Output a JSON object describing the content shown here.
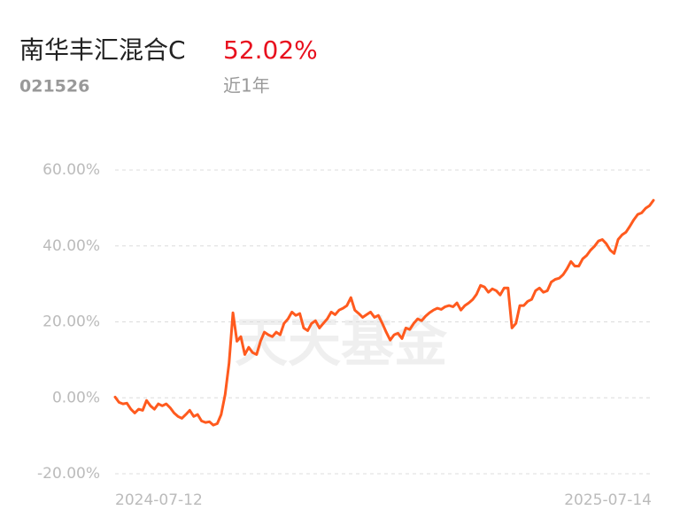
{
  "chart_data": {
    "type": "line",
    "title": "南华丰汇混合C",
    "return_label": "52.02%",
    "code": "021526",
    "period": "近1年",
    "watermark": "天天基金",
    "categories": [
      "2024-07-12",
      null,
      null,
      null,
      null,
      null,
      null,
      null,
      null,
      null,
      null,
      null,
      null,
      null,
      null,
      null,
      null,
      null,
      null,
      null,
      null,
      null,
      null,
      null,
      null,
      null,
      null,
      null,
      null,
      null,
      null,
      null,
      null,
      null,
      null,
      null,
      null,
      null,
      null,
      null,
      null,
      null,
      null,
      null,
      null,
      null,
      null,
      null,
      null,
      null,
      null,
      null,
      null,
      null,
      null,
      null,
      null,
      null,
      null,
      null,
      null,
      null,
      null,
      null,
      null,
      null,
      null,
      null,
      null,
      null,
      null,
      null,
      null,
      null,
      null,
      null,
      null,
      null,
      null,
      null,
      null,
      null,
      null,
      null,
      null,
      null,
      null,
      null,
      null,
      null,
      null,
      null,
      null,
      null,
      null,
      null,
      null,
      null,
      null,
      null,
      null,
      null,
      null,
      null,
      null,
      null,
      null,
      null,
      null,
      null,
      null,
      null,
      null,
      null,
      null,
      null,
      null,
      null,
      null,
      null,
      null,
      null,
      null,
      null,
      null,
      null,
      null,
      null,
      null,
      null,
      null,
      null,
      null,
      null,
      null,
      null,
      null,
      "2025-07-14"
    ],
    "series": [
      {
        "name": "南华丰汇混合C",
        "color": "#ff5a1e",
        "values": [
          0.2,
          -1.2,
          -1.6,
          -1.4,
          -3.0,
          -4.0,
          -3.0,
          -3.3,
          -0.7,
          -2.1,
          -3.0,
          -1.6,
          -2.1,
          -1.6,
          -2.6,
          -4.0,
          -4.9,
          -5.4,
          -4.4,
          -3.3,
          -4.9,
          -4.4,
          -6.1,
          -6.5,
          -6.3,
          -7.2,
          -6.8,
          -4.4,
          0.9,
          9.1,
          22.4,
          14.9,
          16.1,
          11.4,
          13.3,
          11.9,
          11.4,
          14.9,
          17.3,
          16.6,
          16.1,
          17.3,
          16.6,
          19.6,
          20.8,
          22.6,
          21.7,
          22.2,
          18.4,
          17.7,
          19.6,
          20.3,
          18.4,
          19.6,
          20.8,
          22.6,
          21.9,
          23.1,
          23.6,
          24.3,
          26.4,
          23.1,
          22.2,
          21.2,
          21.9,
          22.6,
          21.2,
          21.7,
          19.6,
          17.3,
          15.2,
          16.6,
          17.0,
          15.6,
          18.4,
          18.0,
          19.6,
          20.8,
          20.3,
          21.5,
          22.4,
          23.1,
          23.6,
          23.3,
          24.0,
          24.3,
          24.0,
          25.0,
          23.1,
          24.3,
          25.0,
          25.9,
          27.3,
          29.6,
          29.2,
          27.8,
          28.7,
          28.2,
          27.1,
          28.9,
          28.9,
          18.4,
          19.6,
          24.3,
          24.3,
          25.4,
          25.9,
          28.2,
          28.9,
          27.8,
          28.2,
          30.5,
          31.2,
          31.5,
          32.4,
          34.0,
          35.9,
          34.7,
          34.7,
          36.6,
          37.5,
          38.9,
          39.9,
          41.3,
          41.7,
          40.6,
          38.9,
          38.0,
          41.7,
          42.9,
          43.6,
          45.2,
          46.9,
          48.3,
          48.7,
          49.9,
          50.6,
          52.02
        ]
      }
    ],
    "ylim": [
      -20,
      60
    ],
    "yticks": [
      {
        "value": 60,
        "label": "60.00%"
      },
      {
        "value": 40,
        "label": "40.00%"
      },
      {
        "value": 20,
        "label": "20.00%"
      },
      {
        "value": 0,
        "label": "0.00%"
      },
      {
        "value": -20,
        "label": "-20.00%"
      }
    ],
    "grid": true
  }
}
